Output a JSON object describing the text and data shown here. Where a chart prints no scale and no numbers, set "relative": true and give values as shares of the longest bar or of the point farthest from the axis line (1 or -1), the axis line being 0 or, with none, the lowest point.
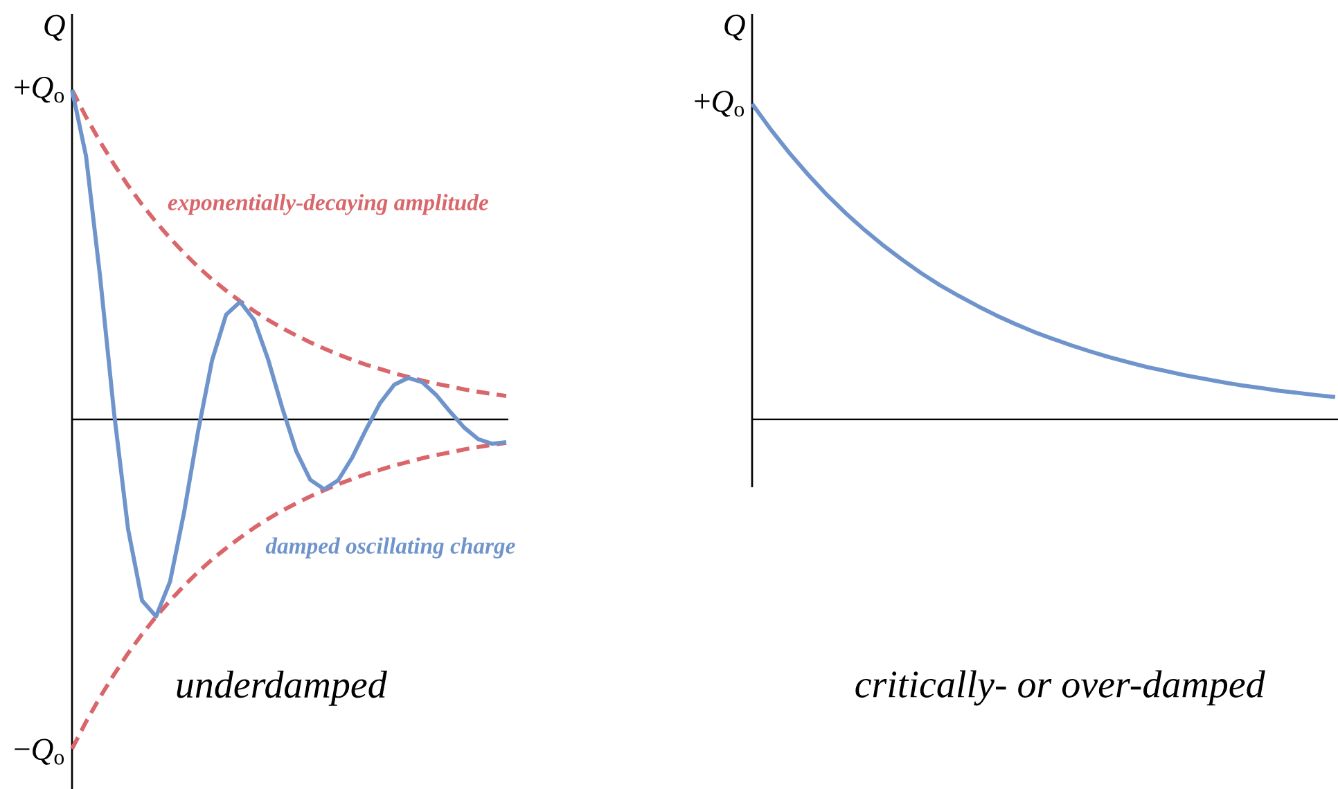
{
  "chart_data": [
    {
      "type": "line",
      "ylabel": "Q",
      "categories": [
        null,
        null,
        null,
        null,
        null,
        null,
        null,
        null,
        null,
        null,
        null,
        null,
        null,
        null,
        null,
        null,
        null,
        null,
        null,
        null,
        null,
        null,
        null,
        null,
        null,
        null,
        null,
        null,
        null,
        null,
        null,
        null
      ],
      "relative": true,
      "series": [
        {
          "color": "#d9666a",
          "line_style": "dashed",
          "values": [
            1.0,
            0.918,
            0.843,
            0.774,
            0.71,
            0.652,
            0.599,
            0.55,
            0.505,
            0.463,
            0.425,
            0.391,
            0.359,
            0.329,
            0.302,
            0.277,
            0.255,
            0.234,
            0.215,
            0.197,
            0.181,
            0.166,
            0.153,
            0.14,
            0.129,
            0.118,
            0.108,
            0.1,
            0.091,
            0.084,
            0.077,
            0.071
          ]
        },
        {
          "color": "#d9666a",
          "line_style": "dashed",
          "values": [
            -1.0,
            -0.918,
            -0.843,
            -0.774,
            -0.71,
            -0.652,
            -0.599,
            -0.55,
            -0.505,
            -0.463,
            -0.425,
            -0.391,
            -0.359,
            -0.329,
            -0.302,
            -0.277,
            -0.255,
            -0.234,
            -0.215,
            -0.197,
            -0.181,
            -0.166,
            -0.153,
            -0.14,
            -0.129,
            -0.118,
            -0.108,
            -0.1,
            -0.091,
            -0.084,
            -0.077,
            -0.071
          ]
        },
        {
          "color": "#6f94cc",
          "line_style": "solid",
          "values": [
            1.0,
            0.799,
            0.434,
            0.02,
            -0.333,
            -0.55,
            -0.598,
            -0.492,
            -0.282,
            -0.036,
            0.18,
            0.318,
            0.357,
            0.302,
            0.182,
            0.036,
            -0.096,
            -0.183,
            -0.212,
            -0.185,
            -0.116,
            -0.03,
            0.05,
            0.105,
            0.126,
            0.113,
            0.074,
            0.023,
            -0.025,
            -0.06,
            -0.074,
            -0.069
          ]
        }
      ],
      "annotations": [
        "exponentially-decaying amplitude",
        "damped oscillating charge",
        "+*Q*$_{o}$",
        "−*Q*$_{o}$",
        "underdamped"
      ]
    },
    {
      "type": "line",
      "ylabel": "Q",
      "categories": [
        null,
        null,
        null,
        null,
        null,
        null,
        null,
        null,
        null,
        null,
        null,
        null,
        null,
        null,
        null,
        null,
        null,
        null,
        null,
        null,
        null,
        null,
        null,
        null,
        null,
        null,
        null,
        null,
        null,
        null,
        null,
        null
      ],
      "relative": true,
      "series": [
        {
          "color": "#6f94cc",
          "line_style": "solid",
          "values": [
            1.0,
            0.918,
            0.843,
            0.774,
            0.71,
            0.652,
            0.599,
            0.55,
            0.505,
            0.463,
            0.425,
            0.391,
            0.359,
            0.329,
            0.302,
            0.277,
            0.255,
            0.234,
            0.215,
            0.197,
            0.181,
            0.166,
            0.153,
            0.14,
            0.129,
            0.118,
            0.108,
            0.1,
            0.091,
            0.084,
            0.077,
            0.071
          ]
        }
      ],
      "annotations": [
        "+*Q*$_{o}$",
        "critically- or over-damped"
      ]
    }
  ]
}
